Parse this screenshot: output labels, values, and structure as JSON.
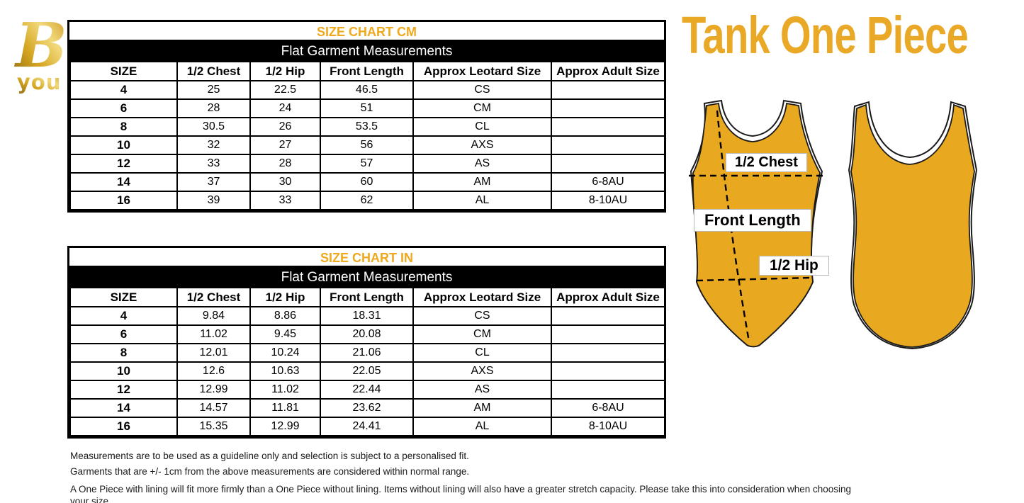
{
  "logo": {
    "mark": "B",
    "text": "you"
  },
  "title": "Tank One Piece",
  "colors": {
    "accent_gold": "#E9A825",
    "table_title_gold": "#F0A81C",
    "leotard_gold": "#E8A81F",
    "trim_white": "#FFFFFF",
    "line_black": "#000000"
  },
  "tables": [
    {
      "title": "SIZE CHART CM",
      "subtitle": "Flat Garment Measurements",
      "columns": [
        "SIZE",
        "1/2 Chest",
        "1/2 Hip",
        "Front Length",
        "Approx Leotard Size",
        "Approx Adult Size"
      ],
      "rows": [
        [
          "4",
          "25",
          "22.5",
          "46.5",
          "CS",
          ""
        ],
        [
          "6",
          "28",
          "24",
          "51",
          "CM",
          ""
        ],
        [
          "8",
          "30.5",
          "26",
          "53.5",
          "CL",
          ""
        ],
        [
          "10",
          "32",
          "27",
          "56",
          "AXS",
          ""
        ],
        [
          "12",
          "33",
          "28",
          "57",
          "AS",
          ""
        ],
        [
          "14",
          "37",
          "30",
          "60",
          "AM",
          "6-8AU"
        ],
        [
          "16",
          "39",
          "33",
          "62",
          "AL",
          "8-10AU"
        ]
      ]
    },
    {
      "title": "SIZE CHART IN",
      "subtitle": "Flat Garment Measurements",
      "columns": [
        "SIZE",
        "1/2 Chest",
        "1/2 Hip",
        "Front Length",
        "Approx Leotard Size",
        "Approx Adult Size"
      ],
      "rows": [
        [
          "4",
          "9.84",
          "8.86",
          "18.31",
          "CS",
          ""
        ],
        [
          "6",
          "11.02",
          "9.45",
          "20.08",
          "CM",
          ""
        ],
        [
          "8",
          "12.01",
          "10.24",
          "21.06",
          "CL",
          ""
        ],
        [
          "10",
          "12.6",
          "10.63",
          "22.05",
          "AXS",
          ""
        ],
        [
          "12",
          "12.99",
          "11.02",
          "22.44",
          "AS",
          ""
        ],
        [
          "14",
          "14.57",
          "11.81",
          "23.62",
          "AM",
          "6-8AU"
        ],
        [
          "16",
          "15.35",
          "12.99",
          "24.41",
          "AL",
          "8-10AU"
        ]
      ]
    }
  ],
  "diagram": {
    "labels": {
      "chest": "1/2 Chest",
      "front_length": "Front Length",
      "hip": "1/2 Hip"
    }
  },
  "footnotes": [
    "Measurements are to be used as a guideline only and selection is subject to a personalised fit.",
    "Garments that are +/- 1cm from the above measurements are considered within normal range.",
    "A One Piece with lining will fit more firmly than a One Piece without lining.  Items without lining will also have a greater stretch capacity. Please take this into consideration when choosing your size"
  ]
}
